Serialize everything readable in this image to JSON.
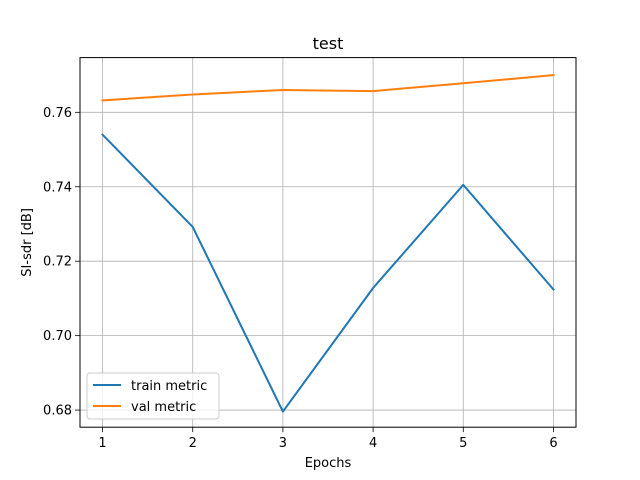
{
  "chart_data": {
    "type": "line",
    "title": "test",
    "xlabel": "Epochs",
    "ylabel": "SI-sdr [dB]",
    "x": [
      1,
      2,
      3,
      4,
      5,
      6
    ],
    "xlim": [
      0.75,
      6.25
    ],
    "ylim": [
      0.6754,
      0.7747
    ],
    "xticks": [
      1,
      2,
      3,
      4,
      5,
      6
    ],
    "yticks": [
      0.68,
      0.7,
      0.72,
      0.74,
      0.76
    ],
    "ytick_labels": [
      "0.68",
      "0.70",
      "0.72",
      "0.74",
      "0.76"
    ],
    "grid": true,
    "legend": "lower-left",
    "series": [
      {
        "name": "train metric",
        "color": "#1f77b4",
        "values": [
          0.754,
          0.7292,
          0.6796,
          0.7128,
          0.7405,
          0.7124
        ]
      },
      {
        "name": "val metric",
        "color": "#ff7f0e",
        "values": [
          0.7632,
          0.7648,
          0.766,
          0.7657,
          0.7678,
          0.77
        ]
      }
    ]
  }
}
